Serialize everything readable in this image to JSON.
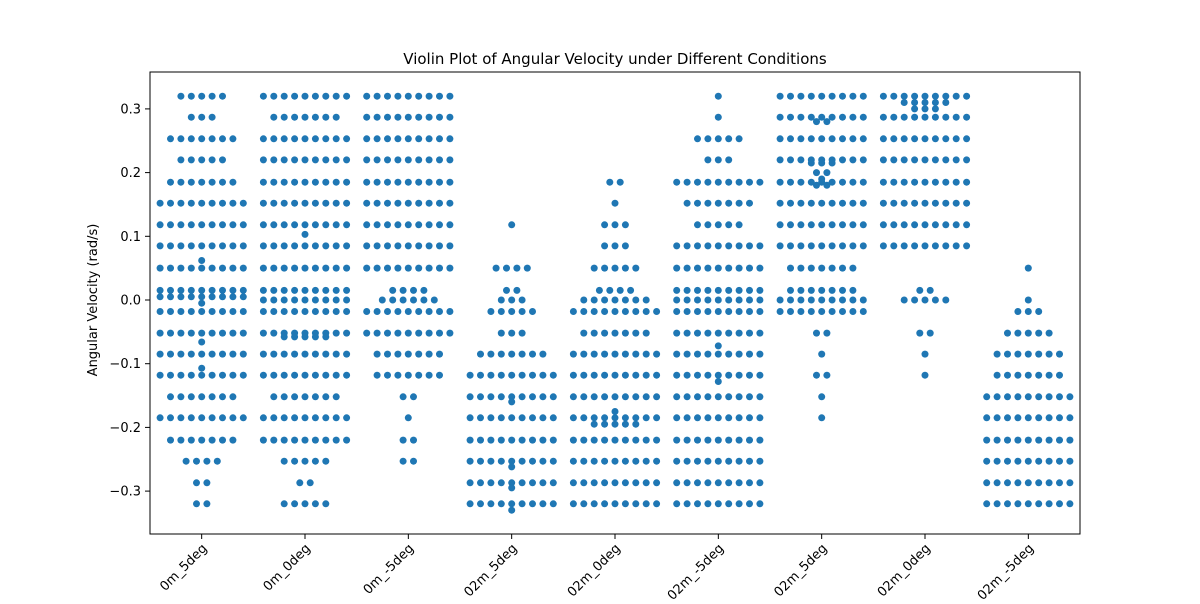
{
  "chart_data": {
    "type": "scatter",
    "subtype": "swarm",
    "title": "Violin Plot of Angular Velocity under Different Conditions",
    "xlabel": "",
    "ylabel": "Angular Velocity (rad/s)",
    "categories": [
      "0m_5deg",
      "0m_0deg",
      "0m_-5deg",
      "02m_5deg",
      "02m_0deg",
      "02m_-5deg",
      "02m_5deg",
      "02m_0deg",
      "02m_-5deg"
    ],
    "ylim": [
      -0.36,
      0.36
    ],
    "yticks": [
      -0.3,
      -0.2,
      -0.1,
      0.0,
      0.1,
      0.2,
      0.3
    ],
    "ytick_labels": [
      "−0.3",
      "−0.2",
      "−0.1",
      "0.0",
      "0.1",
      "0.2",
      "0.3"
    ],
    "grid": false,
    "marker_color": "#1f77b4",
    "groups": [
      {
        "category": "0m_5deg",
        "points": [
          [
            0.32,
            5
          ],
          [
            0.287,
            3
          ],
          [
            0.253,
            7
          ],
          [
            0.22,
            5
          ],
          [
            0.185,
            7
          ],
          [
            0.152,
            9
          ],
          [
            0.118,
            9
          ],
          [
            0.085,
            9
          ],
          [
            0.062,
            1
          ],
          [
            0.05,
            9
          ],
          [
            0.015,
            9
          ],
          [
            0.005,
            9
          ],
          [
            -0.005,
            1
          ],
          [
            -0.018,
            9
          ],
          [
            -0.052,
            9
          ],
          [
            -0.066,
            1
          ],
          [
            -0.085,
            9
          ],
          [
            -0.107,
            1
          ],
          [
            -0.118,
            9
          ],
          [
            -0.152,
            7
          ],
          [
            -0.185,
            9
          ],
          [
            -0.22,
            7
          ],
          [
            -0.253,
            4
          ],
          [
            -0.287,
            2
          ],
          [
            -0.32,
            2
          ]
        ]
      },
      {
        "category": "0m_0deg",
        "points": [
          [
            0.32,
            9
          ],
          [
            0.287,
            7
          ],
          [
            0.253,
            9
          ],
          [
            0.22,
            9
          ],
          [
            0.185,
            9
          ],
          [
            0.152,
            9
          ],
          [
            0.118,
            9
          ],
          [
            0.103,
            1
          ],
          [
            0.085,
            9
          ],
          [
            0.05,
            9
          ],
          [
            0.015,
            9
          ],
          [
            0.0,
            9
          ],
          [
            -0.018,
            9
          ],
          [
            -0.052,
            9
          ],
          [
            -0.058,
            5
          ],
          [
            -0.085,
            9
          ],
          [
            -0.118,
            9
          ],
          [
            -0.152,
            7
          ],
          [
            -0.185,
            9
          ],
          [
            -0.22,
            9
          ],
          [
            -0.253,
            5
          ],
          [
            -0.287,
            2
          ],
          [
            -0.32,
            5
          ]
        ]
      },
      {
        "category": "0m_-5deg",
        "points": [
          [
            0.32,
            9
          ],
          [
            0.287,
            9
          ],
          [
            0.253,
            9
          ],
          [
            0.22,
            9
          ],
          [
            0.185,
            9
          ],
          [
            0.152,
            9
          ],
          [
            0.118,
            9
          ],
          [
            0.085,
            9
          ],
          [
            0.05,
            9
          ],
          [
            0.015,
            4
          ],
          [
            0.0,
            6
          ],
          [
            -0.018,
            9
          ],
          [
            -0.052,
            9
          ],
          [
            -0.085,
            7
          ],
          [
            -0.118,
            7
          ],
          [
            -0.152,
            2
          ],
          [
            -0.185,
            1
          ],
          [
            -0.22,
            2
          ],
          [
            -0.253,
            2
          ]
        ]
      },
      {
        "category": "02m_5deg",
        "points": [
          [
            0.118,
            1
          ],
          [
            0.05,
            4
          ],
          [
            0.015,
            2
          ],
          [
            0.0,
            3
          ],
          [
            -0.018,
            5
          ],
          [
            -0.052,
            3
          ],
          [
            -0.085,
            7
          ],
          [
            -0.118,
            9
          ],
          [
            -0.152,
            9
          ],
          [
            -0.16,
            1
          ],
          [
            -0.185,
            9
          ],
          [
            -0.22,
            9
          ],
          [
            -0.253,
            9
          ],
          [
            -0.262,
            1
          ],
          [
            -0.287,
            9
          ],
          [
            -0.295,
            1
          ],
          [
            -0.32,
            9
          ],
          [
            -0.33,
            1
          ]
        ]
      },
      {
        "category": "02m_0deg",
        "points": [
          [
            0.185,
            2
          ],
          [
            0.152,
            1
          ],
          [
            0.118,
            3
          ],
          [
            0.085,
            3
          ],
          [
            0.05,
            5
          ],
          [
            0.015,
            4
          ],
          [
            0.0,
            7
          ],
          [
            -0.018,
            9
          ],
          [
            -0.052,
            7
          ],
          [
            -0.085,
            9
          ],
          [
            -0.118,
            9
          ],
          [
            -0.152,
            9
          ],
          [
            -0.175,
            1
          ],
          [
            -0.185,
            9
          ],
          [
            -0.195,
            5
          ],
          [
            -0.22,
            9
          ],
          [
            -0.253,
            9
          ],
          [
            -0.287,
            9
          ],
          [
            -0.32,
            9
          ]
        ]
      },
      {
        "category": "02m_-5deg",
        "points": [
          [
            0.32,
            1
          ],
          [
            0.287,
            1
          ],
          [
            0.253,
            5
          ],
          [
            0.22,
            3
          ],
          [
            0.185,
            9
          ],
          [
            0.152,
            7
          ],
          [
            0.118,
            5
          ],
          [
            0.085,
            9
          ],
          [
            0.05,
            9
          ],
          [
            0.015,
            9
          ],
          [
            0.0,
            9
          ],
          [
            -0.018,
            9
          ],
          [
            -0.052,
            9
          ],
          [
            -0.072,
            1
          ],
          [
            -0.085,
            9
          ],
          [
            -0.118,
            9
          ],
          [
            -0.128,
            1
          ],
          [
            -0.152,
            9
          ],
          [
            -0.185,
            9
          ],
          [
            -0.22,
            9
          ],
          [
            -0.253,
            9
          ],
          [
            -0.287,
            9
          ],
          [
            -0.32,
            9
          ]
        ]
      },
      {
        "category": "02m_5deg",
        "points": [
          [
            0.32,
            9
          ],
          [
            0.287,
            9
          ],
          [
            0.28,
            2
          ],
          [
            0.253,
            9
          ],
          [
            0.22,
            9
          ],
          [
            0.215,
            3
          ],
          [
            0.2,
            2
          ],
          [
            0.19,
            1
          ],
          [
            0.18,
            2
          ],
          [
            0.185,
            9
          ],
          [
            0.152,
            9
          ],
          [
            0.118,
            9
          ],
          [
            0.085,
            9
          ],
          [
            0.05,
            7
          ],
          [
            0.015,
            7
          ],
          [
            0.0,
            9
          ],
          [
            -0.018,
            9
          ],
          [
            -0.052,
            2
          ],
          [
            -0.085,
            1
          ],
          [
            -0.118,
            2
          ],
          [
            -0.152,
            1
          ],
          [
            -0.185,
            1
          ]
        ]
      },
      {
        "category": "02m_0deg",
        "points": [
          [
            0.32,
            9
          ],
          [
            0.31,
            5
          ],
          [
            0.3,
            3
          ],
          [
            0.287,
            9
          ],
          [
            0.253,
            9
          ],
          [
            0.22,
            9
          ],
          [
            0.185,
            9
          ],
          [
            0.152,
            9
          ],
          [
            0.118,
            9
          ],
          [
            0.085,
            9
          ],
          [
            0.015,
            2
          ],
          [
            0.0,
            5
          ],
          [
            -0.052,
            2
          ],
          [
            -0.085,
            1
          ],
          [
            -0.118,
            1
          ]
        ]
      },
      {
        "category": "02m_-5deg",
        "points": [
          [
            0.05,
            1
          ],
          [
            0.0,
            1
          ],
          [
            -0.018,
            3
          ],
          [
            -0.052,
            5
          ],
          [
            -0.085,
            7
          ],
          [
            -0.118,
            7
          ],
          [
            -0.152,
            9
          ],
          [
            -0.185,
            9
          ],
          [
            -0.22,
            9
          ],
          [
            -0.253,
            9
          ],
          [
            -0.287,
            9
          ],
          [
            -0.32,
            9
          ]
        ]
      }
    ]
  }
}
